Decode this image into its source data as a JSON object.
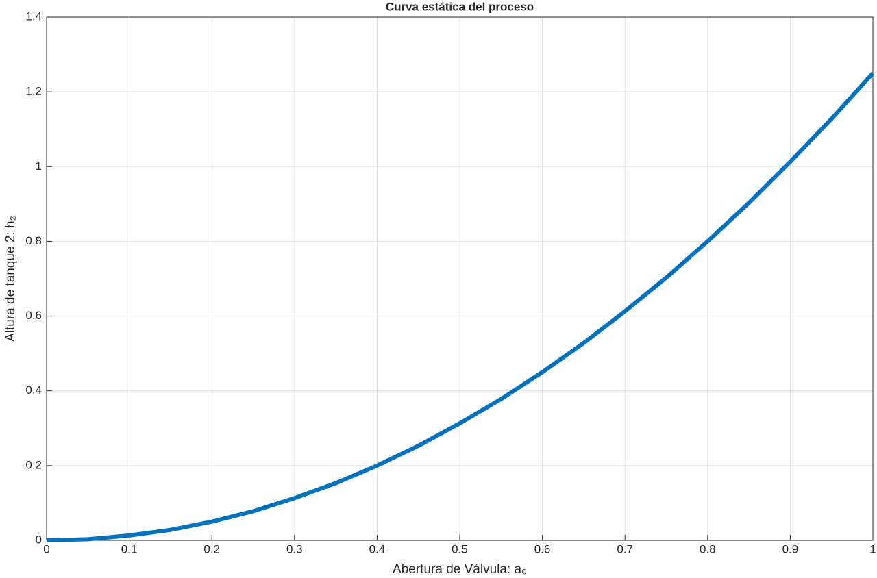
{
  "chart_data": {
    "type": "line",
    "title": "Curva estática del proceso",
    "xlabel": "Abertura de Válvula: a₀",
    "ylabel": "Altura de tanque 2: h₂",
    "x": [
      0,
      0.05,
      0.1,
      0.15,
      0.2,
      0.25,
      0.3,
      0.35,
      0.4,
      0.45,
      0.5,
      0.55,
      0.6,
      0.65,
      0.7,
      0.75,
      0.8,
      0.85,
      0.9,
      0.95,
      1
    ],
    "series": [
      {
        "color": "#0072bd",
        "values": [
          0,
          0.003,
          0.013,
          0.028,
          0.05,
          0.078,
          0.113,
          0.153,
          0.2,
          0.253,
          0.313,
          0.378,
          0.45,
          0.528,
          0.613,
          0.703,
          0.8,
          0.903,
          1.013,
          1.128,
          1.25
        ]
      }
    ],
    "xlim": [
      0,
      1
    ],
    "ylim": [
      0,
      1.4
    ],
    "xticks": [
      0,
      0.1,
      0.2,
      0.3,
      0.4,
      0.5,
      0.6,
      0.7,
      0.8,
      0.9,
      1
    ],
    "yticks": [
      0,
      0.2,
      0.4,
      0.6,
      0.8,
      1,
      1.2,
      1.4
    ],
    "grid": true
  }
}
